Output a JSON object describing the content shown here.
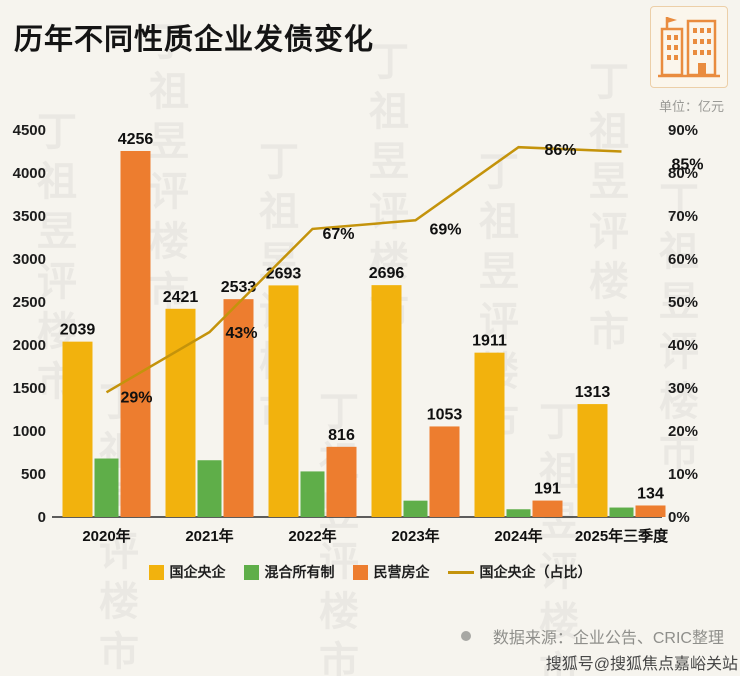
{
  "header": {
    "title": "历年不同性质企业发债变化"
  },
  "chart": {
    "unit_label": "单位：亿元"
  },
  "chart_data": {
    "type": "bar+line",
    "title": "历年不同性质企业发债变化",
    "categories": [
      "2020年",
      "2021年",
      "2022年",
      "2023年",
      "2024年",
      "2025年三季度"
    ],
    "series": [
      {
        "name": "国企央企",
        "type": "bar",
        "color": "#F2B20D",
        "values": [
          2039,
          2421,
          2693,
          2696,
          1911,
          1313
        ],
        "labels": [
          "2039",
          "2421",
          "2693",
          "2696",
          "1911",
          "1313"
        ]
      },
      {
        "name": "混合所有制",
        "type": "bar",
        "color": "#5FAE49",
        "values": [
          680,
          660,
          530,
          190,
          90,
          110
        ],
        "labels": []
      },
      {
        "name": "民营房企",
        "type": "bar",
        "color": "#ED7D2F",
        "values": [
          4256,
          2533,
          816,
          1053,
          191,
          134
        ],
        "labels": [
          "4256",
          "2533",
          "816",
          "1053",
          "191",
          "134"
        ]
      },
      {
        "name": "国企央企（占比）",
        "type": "line",
        "axis": "right",
        "color": "#C4930B",
        "values": [
          29,
          43,
          67,
          69,
          86,
          85
        ],
        "labels": [
          "29%",
          "43%",
          "67%",
          "69%",
          "86%",
          "85%"
        ]
      }
    ],
    "left_axis": {
      "min": 0,
      "max": 4500,
      "step": 500,
      "ticks": [
        "0",
        "500",
        "1000",
        "1500",
        "2000",
        "2500",
        "3000",
        "3500",
        "4000",
        "4500"
      ]
    },
    "right_axis": {
      "min": 0,
      "max": 90,
      "step": 10,
      "ticks": [
        "0%",
        "10%",
        "20%",
        "30%",
        "40%",
        "50%",
        "60%",
        "70%",
        "80%",
        "90%"
      ]
    },
    "grid": false,
    "legend_position": "bottom"
  },
  "footer": {
    "source": "数据来源：企业公告、CRIC整理",
    "sohu": "搜狐号@搜狐焦点嘉峪关站"
  },
  "watermark": {
    "text": "丁祖昱评楼市"
  },
  "colors": {
    "background": "#F6F4EE",
    "title": "#141414",
    "axis_text": "#1C1C1C",
    "muted_text": "#8F8F8B",
    "icon_orange": "#E98C3F"
  }
}
